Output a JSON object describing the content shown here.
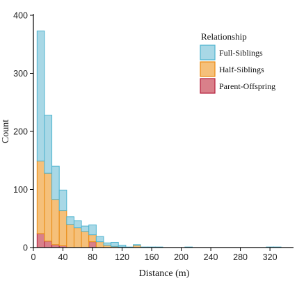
{
  "chart_data": {
    "type": "bar",
    "chart_subtype": "stacked-histogram",
    "xlabel": "Distance (m)",
    "ylabel": "Count",
    "xlim": [
      0,
      350
    ],
    "ylim": [
      0,
      400
    ],
    "xticks": [
      0,
      40,
      80,
      120,
      160,
      200,
      240,
      280,
      320
    ],
    "yticks": [
      0,
      100,
      200,
      300,
      400
    ],
    "bin_width": 10,
    "bin_starts": [
      5,
      15,
      25,
      35,
      45,
      55,
      65,
      75,
      85,
      95,
      105,
      115,
      125,
      135,
      145,
      155,
      165,
      175,
      185,
      195,
      205,
      215,
      225,
      235,
      245,
      255,
      265,
      275,
      285,
      295,
      305,
      315,
      325,
      335
    ],
    "legend": {
      "title": "Relationship",
      "position": "top-right"
    },
    "series": [
      {
        "name": "Parent-Offspring",
        "color": "#d9808a",
        "edge": "#b41d3a",
        "values": [
          24,
          11,
          5,
          3,
          0,
          0,
          0,
          10,
          0,
          0,
          0,
          0,
          0,
          0,
          0,
          0,
          0,
          0,
          0,
          0,
          0,
          0,
          0,
          0,
          0,
          0,
          0,
          0,
          0,
          0,
          0,
          0,
          0,
          0
        ]
      },
      {
        "name": "Half-Siblings",
        "color": "#f5c07a",
        "edge": "#e8890f",
        "values": [
          125,
          117,
          78,
          61,
          40,
          34,
          28,
          12,
          10,
          4,
          2,
          1,
          0,
          4,
          0,
          0,
          0,
          0,
          0,
          0,
          0,
          0,
          0,
          0,
          0,
          0,
          0,
          0,
          0,
          0,
          0,
          0,
          0,
          0
        ]
      },
      {
        "name": "Full-Siblings",
        "color": "#a8d8e6",
        "edge": "#4db3cf",
        "values": [
          224,
          100,
          57,
          35,
          13,
          12,
          9,
          17,
          9,
          4,
          7,
          3,
          1,
          1,
          1,
          1,
          1,
          0,
          0,
          0,
          1,
          0,
          0,
          0,
          0,
          0,
          0,
          0,
          0,
          0,
          0,
          1,
          1,
          0
        ]
      }
    ]
  }
}
